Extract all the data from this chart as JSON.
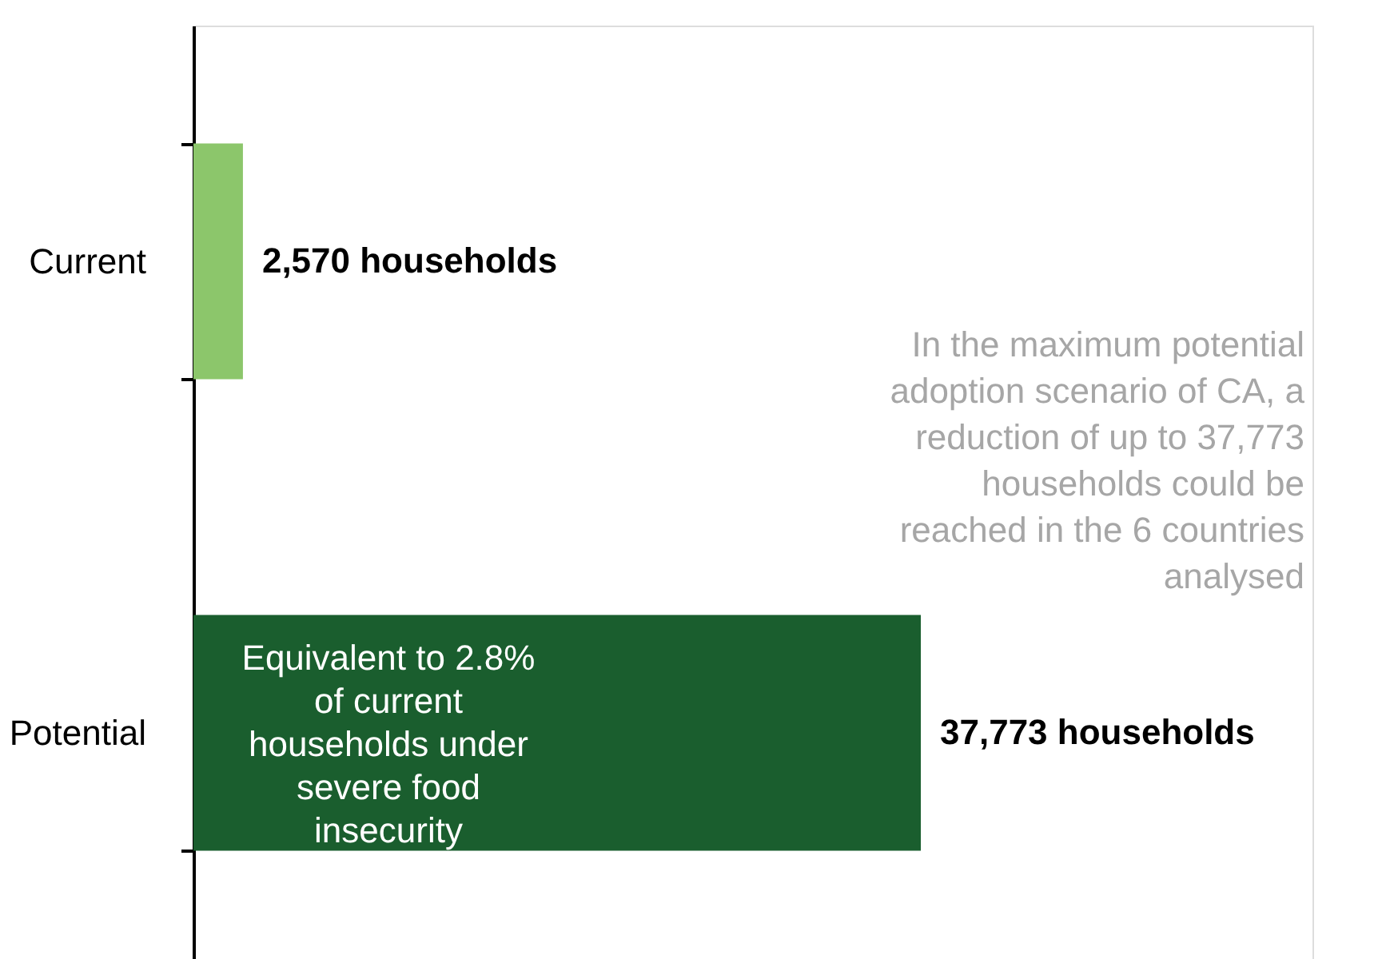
{
  "chart_data": {
    "type": "bar",
    "orientation": "horizontal",
    "categories": [
      "Current",
      "Potential"
    ],
    "values": [
      2570,
      37773
    ],
    "colors": [
      "#8cc66b",
      "#1a5e2e"
    ],
    "value_labels": [
      "2,570 households",
      "37,773 households"
    ],
    "annotations": [
      "Equivalent to 2.8% of current households under severe food insecurity",
      "In the maximum potential adoption scenario of CA, a reduction of up to 37,773 households could be reached in the 6 countries analysed"
    ]
  }
}
